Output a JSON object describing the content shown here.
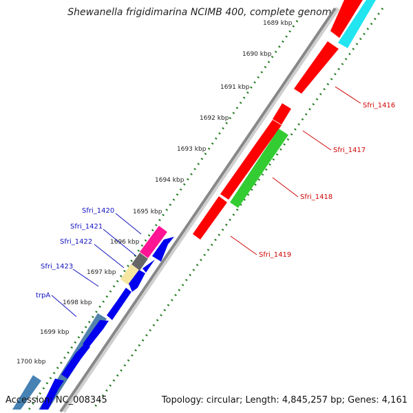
{
  "title": "Shewanella frigidimarina NCIMB 400, complete genome",
  "footer": {
    "accession": "Accession: NC_008345",
    "summary": "Topology: circular; Length: 4,845,257 bp; Genes: 4,161"
  },
  "ticks": [
    "1689 kbp",
    "1690 kbp",
    "1691 kbp",
    "1692 kbp",
    "1693 kbp",
    "1694 kbp",
    "1695 kbp",
    "1696 kbp",
    "1697 kbp",
    "1698 kbp",
    "1699 kbp",
    "1700 kbp"
  ],
  "labels_left": [
    "Sfri_1420",
    "Sfri_1421",
    "Sfri_1422",
    "Sfri_1423",
    "trpA"
  ],
  "labels_right": [
    "Sfri_1416",
    "Sfri_1417",
    "Sfri_1418",
    "Sfri_1419"
  ],
  "colors": {
    "red": "#ff0000",
    "cyan": "#22e5f0",
    "green": "#33cc33",
    "blue": "#0000ee",
    "steel": "#4682b4",
    "magenta": "#ff1493",
    "gray": "#666666",
    "khaki": "#f5e6a0",
    "backbone": "#888888",
    "tick_dots": "#1f7a1f",
    "label_left": "#1010c0",
    "label_right": "#d00000"
  }
}
